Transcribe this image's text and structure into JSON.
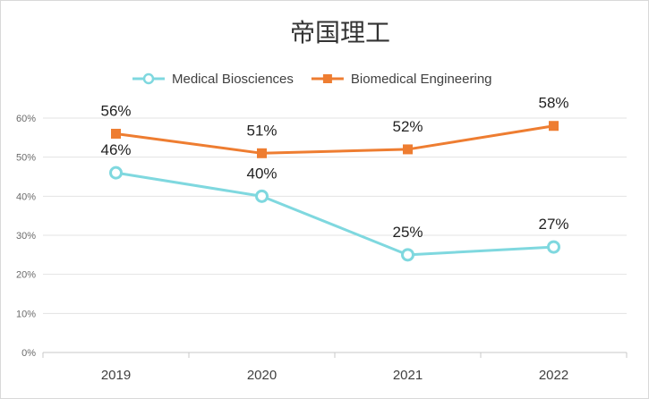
{
  "chart_data": {
    "type": "line",
    "title": "帝国理工",
    "categories": [
      "2019",
      "2020",
      "2021",
      "2022"
    ],
    "series": [
      {
        "name": "Medical Biosciences",
        "values": [
          46,
          40,
          25,
          27
        ],
        "labels": [
          "46%",
          "40%",
          "25%",
          "27%"
        ],
        "color": "#7fd8df",
        "marker": "circle"
      },
      {
        "name": "Biomedical Engineering",
        "values": [
          56,
          51,
          52,
          58
        ],
        "labels": [
          "56%",
          "51%",
          "52%",
          "58%"
        ],
        "color": "#ee7d31",
        "marker": "square"
      }
    ],
    "ylim": [
      0,
      60
    ],
    "yticks": [
      0,
      10,
      20,
      30,
      40,
      50,
      60
    ],
    "ytick_labels": [
      "0%",
      "10%",
      "20%",
      "30%",
      "40%",
      "50%",
      "60%"
    ],
    "grid": true,
    "legend_position": "top-center"
  }
}
